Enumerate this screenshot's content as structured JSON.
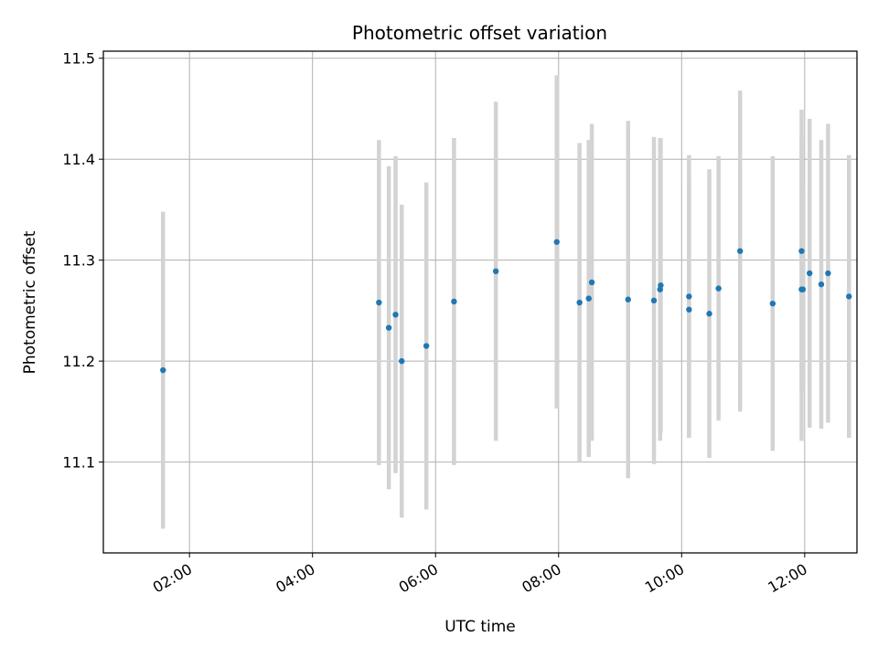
{
  "chart_data": {
    "type": "scatter",
    "title": "Photometric offset variation",
    "xlabel": "UTC time",
    "ylabel": "Photometric offset",
    "x_unit": "hour",
    "xlim": [
      0.6,
      12.85
    ],
    "ylim": [
      11.01,
      11.507
    ],
    "x_ticks": [
      {
        "value": 2,
        "label": "02:00"
      },
      {
        "value": 4,
        "label": "04:00"
      },
      {
        "value": 6,
        "label": "06:00"
      },
      {
        "value": 8,
        "label": "08:00"
      },
      {
        "value": 10,
        "label": "10:00"
      },
      {
        "value": 12,
        "label": "12:00"
      }
    ],
    "y_ticks": [
      {
        "value": 11.1,
        "label": "11.1"
      },
      {
        "value": 11.2,
        "label": "11.2"
      },
      {
        "value": 11.3,
        "label": "11.3"
      },
      {
        "value": 11.4,
        "label": "11.4"
      },
      {
        "value": 11.5,
        "label": "11.5"
      }
    ],
    "grid": true,
    "point_color": "#1f77b4",
    "errorbar_color": "#d3d3d3",
    "points": [
      {
        "x": 1.57,
        "y": 11.191,
        "err": 0.157
      },
      {
        "x": 5.08,
        "y": 11.258,
        "err": 0.161
      },
      {
        "x": 5.24,
        "y": 11.233,
        "err": 0.16
      },
      {
        "x": 5.35,
        "y": 11.246,
        "err": 0.157
      },
      {
        "x": 5.45,
        "y": 11.2,
        "err": 0.155
      },
      {
        "x": 5.85,
        "y": 11.215,
        "err": 0.162
      },
      {
        "x": 6.3,
        "y": 11.259,
        "err": 0.162
      },
      {
        "x": 6.98,
        "y": 11.289,
        "err": 0.168
      },
      {
        "x": 7.97,
        "y": 11.318,
        "err": 0.165
      },
      {
        "x": 8.34,
        "y": 11.258,
        "err": 0.158
      },
      {
        "x": 8.49,
        "y": 11.262,
        "err": 0.157
      },
      {
        "x": 8.54,
        "y": 11.278,
        "err": 0.157
      },
      {
        "x": 9.13,
        "y": 11.261,
        "err": 0.177
      },
      {
        "x": 9.55,
        "y": 11.26,
        "err": 0.162
      },
      {
        "x": 9.65,
        "y": 11.271,
        "err": 0.15
      },
      {
        "x": 9.66,
        "y": 11.275,
        "err": 0.146
      },
      {
        "x": 10.12,
        "y": 11.251,
        "err": 0.127
      },
      {
        "x": 10.12,
        "y": 11.264,
        "err": 0.14
      },
      {
        "x": 10.45,
        "y": 11.247,
        "err": 0.143
      },
      {
        "x": 10.6,
        "y": 11.272,
        "err": 0.131
      },
      {
        "x": 10.95,
        "y": 11.309,
        "err": 0.159
      },
      {
        "x": 11.48,
        "y": 11.257,
        "err": 0.146
      },
      {
        "x": 11.95,
        "y": 11.309,
        "err": 0.14
      },
      {
        "x": 11.95,
        "y": 11.271,
        "err": 0.15
      },
      {
        "x": 11.97,
        "y": 11.271,
        "err": 0.1
      },
      {
        "x": 12.08,
        "y": 11.287,
        "err": 0.153
      },
      {
        "x": 12.27,
        "y": 11.276,
        "err": 0.143
      },
      {
        "x": 12.38,
        "y": 11.287,
        "err": 0.148
      },
      {
        "x": 12.72,
        "y": 11.264,
        "err": 0.14
      }
    ]
  }
}
